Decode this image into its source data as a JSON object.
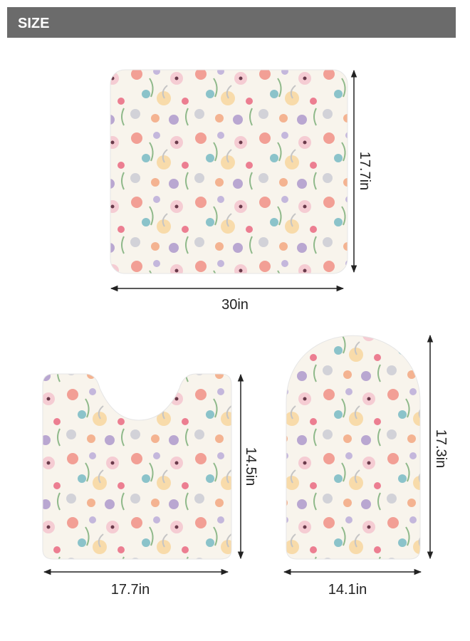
{
  "header": {
    "title": "SIZE"
  },
  "items": [
    {
      "width_label": "30in",
      "height_label": "17.7in"
    },
    {
      "width_label": "17.7in",
      "height_label": "14.5in"
    },
    {
      "width_label": "14.1in",
      "height_label": "17.3in"
    }
  ]
}
